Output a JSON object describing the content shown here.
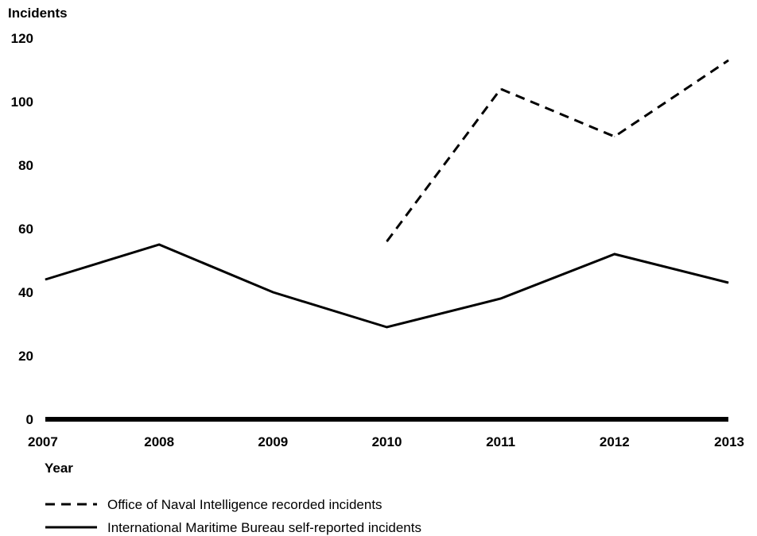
{
  "chart_data": {
    "type": "line",
    "ylabel": "Incidents",
    "xlabel": "Year",
    "x": [
      "2007",
      "2008",
      "2009",
      "2010",
      "2011",
      "2012",
      "2013"
    ],
    "yticks": [
      "0",
      "20",
      "40",
      "60",
      "80",
      "100",
      "120"
    ],
    "ylim": [
      0,
      120
    ],
    "grid": false,
    "legend_position": "bottom-left",
    "series": [
      {
        "name": "Office of Naval Intelligence recorded incidents",
        "style": "dashed",
        "color": "#000000",
        "values": [
          null,
          null,
          null,
          56,
          104,
          89,
          113
        ]
      },
      {
        "name": "International Maritime Bureau self-reported incidents",
        "style": "solid",
        "color": "#000000",
        "values": [
          44,
          55,
          40,
          29,
          38,
          52,
          43
        ]
      }
    ]
  }
}
